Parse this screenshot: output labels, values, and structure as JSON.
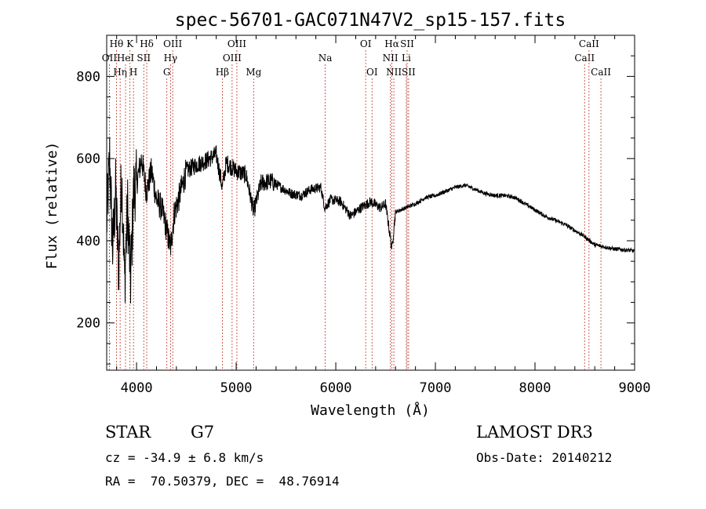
{
  "chart_data": {
    "type": "line",
    "title": "spec-56701-GAC071N47V2_sp15-157.fits",
    "xlabel": "Wavelength (Å)",
    "ylabel": "Flux (relative)",
    "xlim": [
      3700,
      9000
    ],
    "ylim": [
      85,
      900
    ],
    "x_ticks": [
      4000,
      5000,
      6000,
      7000,
      8000,
      9000
    ],
    "y_ticks": [
      200,
      400,
      600,
      800
    ],
    "grid": false,
    "series": [
      {
        "name": "spectrum",
        "x": [
          3700,
          3730,
          3760,
          3790,
          3820,
          3850,
          3880,
          3910,
          3940,
          3970,
          4000,
          4050,
          4100,
          4150,
          4200,
          4250,
          4300,
          4340,
          4380,
          4420,
          4500,
          4600,
          4700,
          4800,
          4861,
          4900,
          5000,
          5100,
          5175,
          5250,
          5350,
          5450,
          5550,
          5650,
          5750,
          5850,
          5890,
          5950,
          6050,
          6150,
          6250,
          6350,
          6450,
          6500,
          6563,
          6600,
          6700,
          6800,
          6900,
          7000,
          7100,
          7200,
          7300,
          7400,
          7500,
          7600,
          7700,
          7800,
          7900,
          8000,
          8100,
          8200,
          8300,
          8400,
          8500,
          8600,
          8700,
          8800,
          8900,
          9000
        ],
        "y": [
          440,
          600,
          380,
          520,
          330,
          570,
          300,
          480,
          300,
          520,
          540,
          600,
          520,
          570,
          500,
          480,
          430,
          380,
          470,
          500,
          570,
          585,
          595,
          610,
          530,
          590,
          570,
          560,
          470,
          540,
          545,
          530,
          515,
          510,
          525,
          530,
          480,
          500,
          495,
          460,
          480,
          495,
          480,
          490,
          380,
          470,
          480,
          490,
          505,
          510,
          520,
          530,
          535,
          525,
          515,
          510,
          510,
          505,
          490,
          475,
          460,
          450,
          440,
          425,
          410,
          390,
          385,
          380,
          378,
          375
        ],
        "color": "#000000"
      }
    ],
    "line_markers": [
      {
        "name": "OII",
        "x": 3727,
        "row": 1
      },
      {
        "name": "Hθ",
        "x": 3798,
        "row": 0
      },
      {
        "name": "Hη",
        "x": 3835,
        "row": 2
      },
      {
        "name": "HeI",
        "x": 3889,
        "row": 1
      },
      {
        "name": "K",
        "x": 3934,
        "row": 0
      },
      {
        "name": "H",
        "x": 3969,
        "row": 2
      },
      {
        "name": "SII",
        "x": 4072,
        "row": 1
      },
      {
        "name": "Hδ",
        "x": 4102,
        "row": 0
      },
      {
        "name": "G",
        "x": 4304,
        "row": 2
      },
      {
        "name": "Hγ",
        "x": 4341,
        "row": 1
      },
      {
        "name": "OIII",
        "x": 4363,
        "row": 0
      },
      {
        "name": "Hβ",
        "x": 4861,
        "row": 2
      },
      {
        "name": "OIII",
        "x": 4959,
        "row": 1
      },
      {
        "name": "OIII",
        "x": 5007,
        "row": 0
      },
      {
        "name": "Mg",
        "x": 5175,
        "row": 2
      },
      {
        "name": "Na",
        "x": 5894,
        "row": 1
      },
      {
        "name": "OI",
        "x": 6300,
        "row": 0
      },
      {
        "name": "OI",
        "x": 6364,
        "row": 2
      },
      {
        "name": "NII",
        "x": 6548,
        "row": 1
      },
      {
        "name": "Hα",
        "x": 6563,
        "row": 0
      },
      {
        "name": "NII",
        "x": 6583,
        "row": 2
      },
      {
        "name": "Li",
        "x": 6708,
        "row": 1
      },
      {
        "name": "SII",
        "x": 6716,
        "row": 0
      },
      {
        "name": "SII",
        "x": 6731,
        "row": 2
      },
      {
        "name": "CaII",
        "x": 8498,
        "row": 1
      },
      {
        "name": "CaII",
        "x": 8542,
        "row": 0
      },
      {
        "name": "CaII",
        "x": 8662,
        "row": 2
      }
    ],
    "marker_color": "#c0392b",
    "line_color": "#000000"
  },
  "info": {
    "class": "STAR",
    "subclass": "G7",
    "survey": "LAMOST DR3",
    "cz": "cz = -34.9 ± 6.8 km/s",
    "obs_date": "Obs-Date: 20140212",
    "coords": "RA =  70.50379, DEC =  48.76914"
  }
}
